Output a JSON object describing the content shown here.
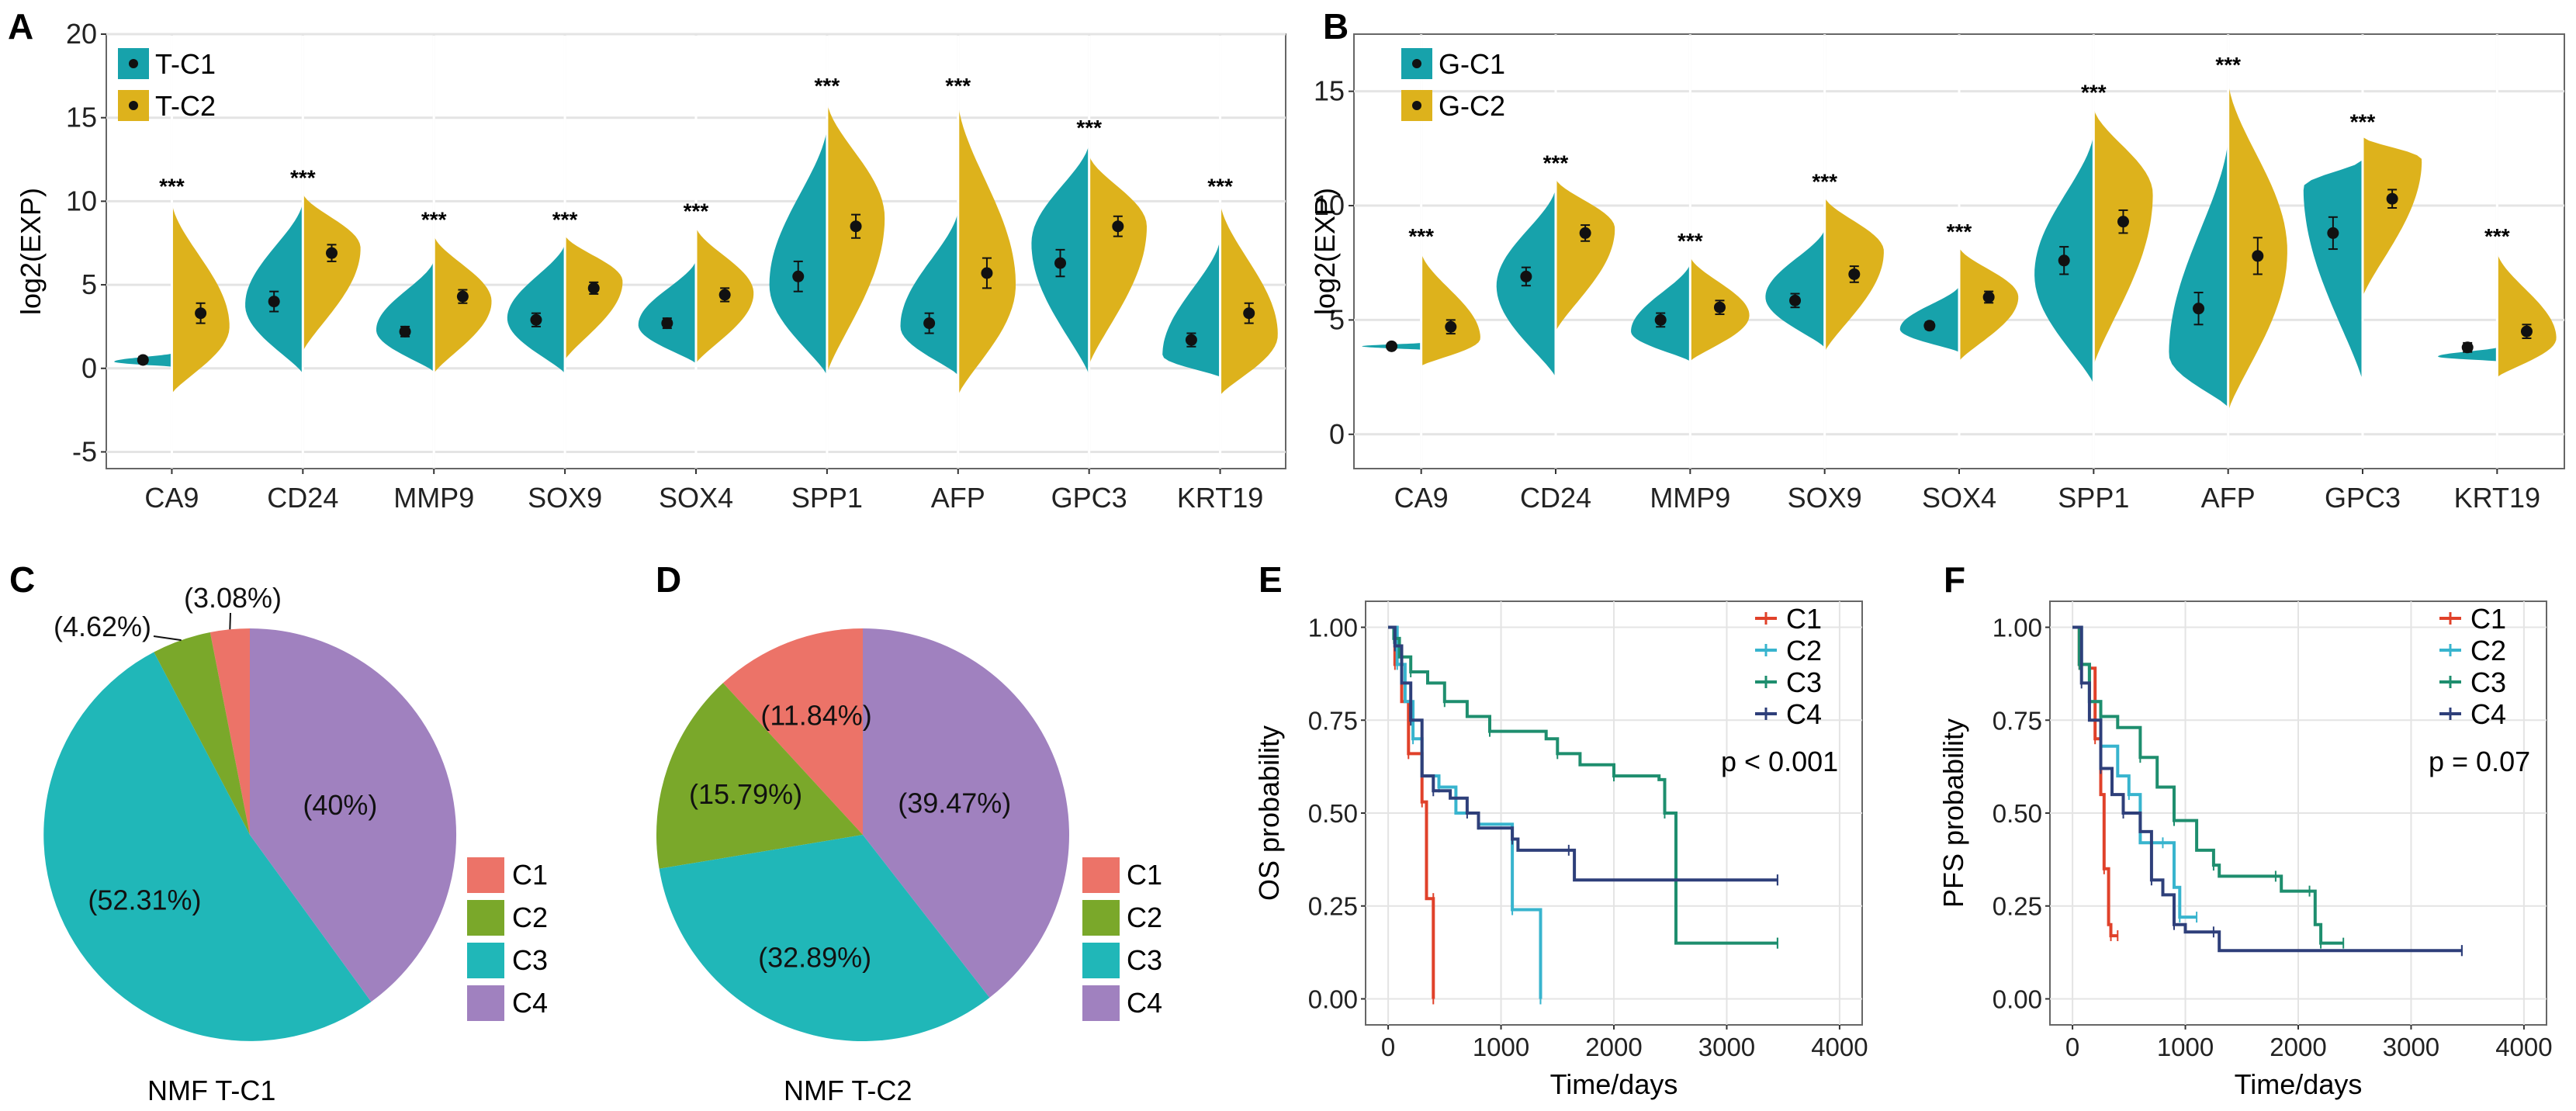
{
  "colors": {
    "teal": "#17a2ab",
    "gold": "#ddb21c",
    "pie_c1": "#ec7368",
    "pie_c2": "#7aa82a",
    "pie_c3": "#20b7b8",
    "pie_c4": "#a081bf",
    "km_c1": "#e0412a",
    "km_c2": "#38b4ce",
    "km_c3": "#1e8e6e",
    "km_c4": "#2e3f7a",
    "grid": "#e4e4e4",
    "border": "#666666"
  },
  "chart_data": [
    {
      "id": "A",
      "panel_label": "A",
      "type": "violin",
      "ylabel": "log2(EXP)",
      "ylim": [
        -6,
        20
      ],
      "yticks": [
        -5,
        0,
        5,
        10,
        15,
        20
      ],
      "categories": [
        "CA9",
        "CD24",
        "MMP9",
        "SOX9",
        "SOX4",
        "SPP1",
        "AFP",
        "GPC3",
        "KRT19"
      ],
      "legend": [
        "T-C1",
        "T-C2"
      ],
      "significance": [
        "***",
        "***",
        "***",
        "***",
        "***",
        "***",
        "***",
        "***",
        "***"
      ],
      "series": [
        {
          "name": "T-C1",
          "color": "teal",
          "ranges": [
            [
              0.1,
              0.9
            ],
            [
              -0.3,
              10.0
            ],
            [
              -0.2,
              6.5
            ],
            [
              -0.3,
              7.5
            ],
            [
              0.3,
              6.5
            ],
            [
              -0.4,
              14.5
            ],
            [
              -0.4,
              9.5
            ],
            [
              -0.4,
              13.5
            ],
            [
              -0.5,
              7.8
            ]
          ],
          "peaks": [
            0.4,
            3.8,
            2.3,
            3.0,
            2.6,
            5.0,
            2.5,
            7.5,
            0.8
          ],
          "means": [
            0.5,
            4.0,
            2.2,
            2.9,
            2.7,
            5.5,
            2.7,
            6.3,
            1.7
          ],
          "ci": [
            0.2,
            0.6,
            0.3,
            0.4,
            0.3,
            0.9,
            0.6,
            0.8,
            0.4
          ]
        },
        {
          "name": "T-C2",
          "color": "gold",
          "ranges": [
            [
              -1.5,
              10.0
            ],
            [
              1.0,
              10.5
            ],
            [
              -0.3,
              8.0
            ],
            [
              0.5,
              8.0
            ],
            [
              0.3,
              8.5
            ],
            [
              -0.3,
              16.0
            ],
            [
              -1.6,
              16.0
            ],
            [
              0.2,
              12.8
            ],
            [
              -1.6,
              10.0
            ]
          ],
          "peaks": [
            2.5,
            7.2,
            4.0,
            5.2,
            4.5,
            9.0,
            5.0,
            8.5,
            2.0
          ],
          "means": [
            3.3,
            6.9,
            4.3,
            4.8,
            4.4,
            8.5,
            5.7,
            8.5,
            3.3
          ],
          "ci": [
            0.6,
            0.5,
            0.4,
            0.35,
            0.4,
            0.7,
            0.9,
            0.6,
            0.6
          ]
        }
      ]
    },
    {
      "id": "B",
      "panel_label": "B",
      "type": "violin",
      "ylabel": "log2(EXP)",
      "ylim": [
        -1.5,
        17.5
      ],
      "yticks": [
        0,
        5,
        10,
        15
      ],
      "categories": [
        "CA9",
        "CD24",
        "MMP9",
        "SOX9",
        "SOX4",
        "SPP1",
        "AFP",
        "GPC3",
        "KRT19"
      ],
      "legend": [
        "G-C1",
        "G-C2"
      ],
      "significance": [
        "***",
        "***",
        "***",
        "***",
        "***",
        "***",
        "***",
        "***",
        "***"
      ],
      "series": [
        {
          "name": "G-C1",
          "color": "teal",
          "ranges": [
            [
              3.7,
              4.0
            ],
            [
              2.5,
              10.8
            ],
            [
              3.2,
              7.5
            ],
            [
              3.8,
              9.0
            ],
            [
              3.6,
              6.5
            ],
            [
              2.2,
              13.2
            ],
            [
              1.2,
              13.0
            ],
            [
              2.3,
              12.0
            ],
            [
              3.2,
              3.8
            ]
          ],
          "peaks": [
            3.85,
            6.5,
            4.5,
            6.0,
            4.6,
            7.0,
            3.5,
            10.8,
            3.4
          ],
          "means": [
            3.85,
            6.9,
            5.0,
            5.85,
            4.75,
            7.6,
            5.5,
            8.8,
            3.8
          ],
          "ci": [
            0.1,
            0.4,
            0.3,
            0.3,
            0.15,
            0.6,
            0.7,
            0.7,
            0.2
          ]
        },
        {
          "name": "G-C2",
          "color": "gold",
          "ranges": [
            [
              3.0,
              8.0
            ],
            [
              4.5,
              11.2
            ],
            [
              3.2,
              7.8
            ],
            [
              3.6,
              10.4
            ],
            [
              3.2,
              8.2
            ],
            [
              3.0,
              14.3
            ],
            [
              1.0,
              15.5
            ],
            [
              6.0,
              13.0
            ],
            [
              2.5,
              8.0
            ]
          ],
          "peaks": [
            4.2,
            9.0,
            5.2,
            8.0,
            6.0,
            10.5,
            8.0,
            12.0,
            4.2
          ],
          "means": [
            4.7,
            8.8,
            5.55,
            7.0,
            6.0,
            9.3,
            7.8,
            10.3,
            4.5
          ],
          "ci": [
            0.3,
            0.35,
            0.3,
            0.35,
            0.25,
            0.5,
            0.8,
            0.4,
            0.3
          ]
        }
      ]
    },
    {
      "id": "C",
      "panel_label": "C",
      "type": "pie",
      "title": "NMF T-C1",
      "slices": [
        {
          "name": "C1",
          "value": 3.08,
          "label": "(3.08%)",
          "color": "pie_c1"
        },
        {
          "name": "C2",
          "value": 4.62,
          "label": "(4.62%)",
          "color": "pie_c2"
        },
        {
          "name": "C3",
          "value": 52.31,
          "label": "(52.31%)",
          "color": "pie_c3"
        },
        {
          "name": "C4",
          "value": 40.0,
          "label": "(40%)",
          "color": "pie_c4"
        }
      ],
      "legend": [
        "C1",
        "C2",
        "C3",
        "C4"
      ]
    },
    {
      "id": "D",
      "panel_label": "D",
      "type": "pie",
      "title": "NMF T-C2",
      "slices": [
        {
          "name": "C1",
          "value": 11.84,
          "label": "(11.84%)",
          "color": "pie_c1"
        },
        {
          "name": "C2",
          "value": 15.79,
          "label": "(15.79%)",
          "color": "pie_c2"
        },
        {
          "name": "C3",
          "value": 32.89,
          "label": "(32.89%)",
          "color": "pie_c3"
        },
        {
          "name": "C4",
          "value": 39.47,
          "label": "(39.47%)",
          "color": "pie_c4"
        }
      ],
      "legend": [
        "C1",
        "C2",
        "C3",
        "C4"
      ]
    },
    {
      "id": "E",
      "panel_label": "E",
      "type": "line",
      "subtype": "kaplan-meier",
      "xlabel": "Time/days",
      "ylabel": "OS probability",
      "xlim": [
        -200,
        4200
      ],
      "ylim": [
        -0.07,
        1.07
      ],
      "xticks": [
        0,
        1000,
        2000,
        3000,
        4000
      ],
      "yticks": [
        0.0,
        0.25,
        0.5,
        0.75,
        1.0
      ],
      "ytick_labels": [
        "0.00",
        "0.25",
        "0.50",
        "0.75",
        "1.00"
      ],
      "pvalue": "p < 0.001",
      "series": [
        {
          "name": "C1",
          "color": "km_c1",
          "points": [
            [
              0,
              1.0
            ],
            [
              60,
              0.9
            ],
            [
              120,
              0.8
            ],
            [
              180,
              0.66
            ],
            [
              260,
              0.66
            ],
            [
              300,
              0.53
            ],
            [
              340,
              0.27
            ],
            [
              400,
              0.27
            ],
            [
              400,
              0.0
            ]
          ]
        },
        {
          "name": "C2",
          "color": "km_c2",
          "points": [
            [
              0,
              1.0
            ],
            [
              80,
              0.9
            ],
            [
              150,
              0.8
            ],
            [
              220,
              0.7
            ],
            [
              300,
              0.6
            ],
            [
              450,
              0.57
            ],
            [
              600,
              0.5
            ],
            [
              800,
              0.47
            ],
            [
              1050,
              0.47
            ],
            [
              1100,
              0.24
            ],
            [
              1300,
              0.24
            ],
            [
              1350,
              0.0
            ]
          ]
        },
        {
          "name": "C3",
          "color": "km_c3",
          "points": [
            [
              0,
              1.0
            ],
            [
              50,
              0.97
            ],
            [
              100,
              0.92
            ],
            [
              200,
              0.88
            ],
            [
              350,
              0.85
            ],
            [
              500,
              0.8
            ],
            [
              700,
              0.76
            ],
            [
              900,
              0.72
            ],
            [
              1400,
              0.7
            ],
            [
              1500,
              0.66
            ],
            [
              1700,
              0.63
            ],
            [
              2000,
              0.6
            ],
            [
              2400,
              0.59
            ],
            [
              2450,
              0.5
            ],
            [
              2550,
              0.15
            ],
            [
              3450,
              0.15
            ]
          ]
        },
        {
          "name": "C4",
          "color": "km_c4",
          "points": [
            [
              0,
              1.0
            ],
            [
              60,
              0.95
            ],
            [
              120,
              0.85
            ],
            [
              200,
              0.75
            ],
            [
              300,
              0.6
            ],
            [
              400,
              0.56
            ],
            [
              550,
              0.54
            ],
            [
              700,
              0.5
            ],
            [
              800,
              0.46
            ],
            [
              1100,
              0.43
            ],
            [
              1150,
              0.4
            ],
            [
              1600,
              0.4
            ],
            [
              1650,
              0.32
            ],
            [
              3450,
              0.32
            ]
          ]
        }
      ],
      "legend": [
        "C1",
        "C2",
        "C3",
        "C4"
      ]
    },
    {
      "id": "F",
      "panel_label": "F",
      "type": "line",
      "subtype": "kaplan-meier",
      "xlabel": "Time/days",
      "ylabel": "PFS probability",
      "xlim": [
        -200,
        4200
      ],
      "ylim": [
        -0.07,
        1.07
      ],
      "xticks": [
        0,
        1000,
        2000,
        3000,
        4000
      ],
      "yticks": [
        0.0,
        0.25,
        0.5,
        0.75,
        1.0
      ],
      "ytick_labels": [
        "0.00",
        "0.25",
        "0.50",
        "0.75",
        "1.00"
      ],
      "pvalue": "p = 0.07",
      "series": [
        {
          "name": "C1",
          "color": "km_c1",
          "points": [
            [
              0,
              1.0
            ],
            [
              60,
              0.9
            ],
            [
              150,
              0.89
            ],
            [
              200,
              0.7
            ],
            [
              250,
              0.55
            ],
            [
              280,
              0.35
            ],
            [
              320,
              0.2
            ],
            [
              340,
              0.17
            ],
            [
              400,
              0.17
            ]
          ]
        },
        {
          "name": "C2",
          "color": "km_c2",
          "points": [
            [
              0,
              1.0
            ],
            [
              80,
              0.9
            ],
            [
              150,
              0.8
            ],
            [
              250,
              0.68
            ],
            [
              400,
              0.6
            ],
            [
              500,
              0.55
            ],
            [
              600,
              0.42
            ],
            [
              800,
              0.42
            ],
            [
              900,
              0.3
            ],
            [
              950,
              0.22
            ],
            [
              1100,
              0.22
            ]
          ]
        },
        {
          "name": "C3",
          "color": "km_c3",
          "points": [
            [
              0,
              1.0
            ],
            [
              60,
              0.9
            ],
            [
              150,
              0.8
            ],
            [
              250,
              0.76
            ],
            [
              400,
              0.73
            ],
            [
              600,
              0.65
            ],
            [
              750,
              0.57
            ],
            [
              900,
              0.48
            ],
            [
              1100,
              0.4
            ],
            [
              1250,
              0.36
            ],
            [
              1300,
              0.33
            ],
            [
              1800,
              0.33
            ],
            [
              1850,
              0.29
            ],
            [
              2100,
              0.29
            ],
            [
              2150,
              0.2
            ],
            [
              2200,
              0.15
            ],
            [
              2400,
              0.15
            ]
          ]
        },
        {
          "name": "C4",
          "color": "km_c4",
          "points": [
            [
              0,
              1.0
            ],
            [
              80,
              0.85
            ],
            [
              150,
              0.75
            ],
            [
              250,
              0.62
            ],
            [
              350,
              0.55
            ],
            [
              450,
              0.5
            ],
            [
              600,
              0.45
            ],
            [
              700,
              0.32
            ],
            [
              800,
              0.28
            ],
            [
              900,
              0.2
            ],
            [
              1000,
              0.18
            ],
            [
              1250,
              0.18
            ],
            [
              1300,
              0.13
            ],
            [
              3450,
              0.13
            ]
          ]
        }
      ],
      "legend": [
        "C1",
        "C2",
        "C3",
        "C4"
      ]
    }
  ]
}
